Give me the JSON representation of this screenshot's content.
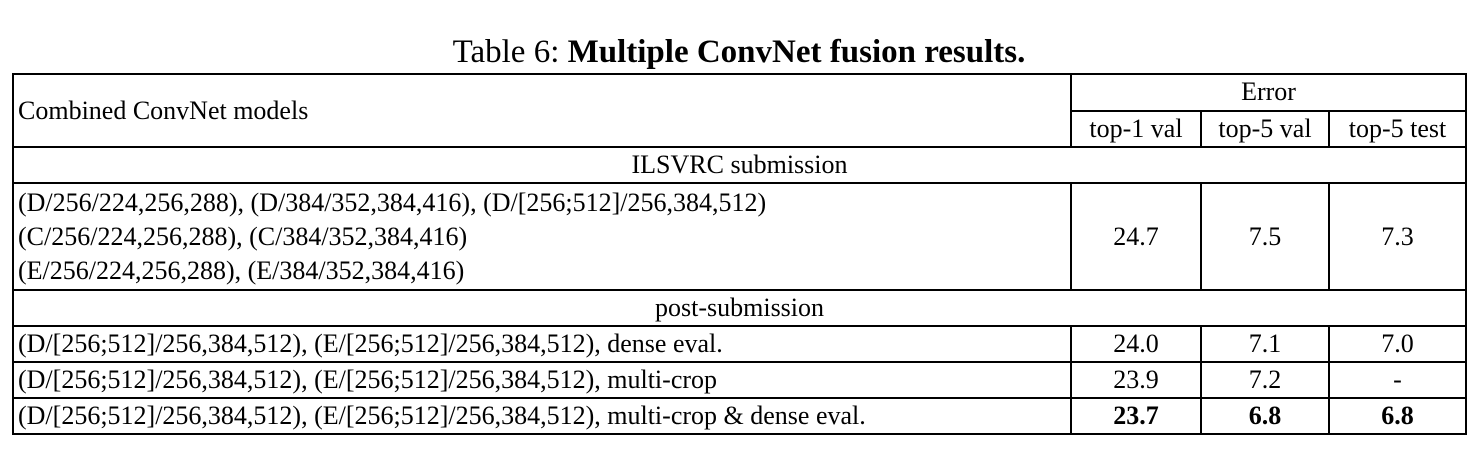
{
  "caption": {
    "label": "Table 6:",
    "title": "Multiple ConvNet fusion results."
  },
  "header": {
    "model_col": "Combined ConvNet models",
    "error_group": "Error",
    "sub_cols": [
      "top-1 val",
      "top-5 val",
      "top-5 test"
    ]
  },
  "sections": [
    {
      "title": "ILSVRC submission",
      "rows": [
        {
          "model_lines": [
            "(D/256/224,256,288), (D/384/352,384,416), (D/[256;512]/256,384,512)",
            "(C/256/224,256,288), (C/384/352,384,416)",
            "(E/256/224,256,288), (E/384/352,384,416)"
          ],
          "top1_val": "24.7",
          "top5_val": "7.5",
          "top5_test": "7.3",
          "bold": false
        }
      ]
    },
    {
      "title": "post-submission",
      "rows": [
        {
          "model_lines": [
            "(D/[256;512]/256,384,512), (E/[256;512]/256,384,512), dense eval."
          ],
          "top1_val": "24.0",
          "top5_val": "7.1",
          "top5_test": "7.0",
          "bold": false
        },
        {
          "model_lines": [
            "(D/[256;512]/256,384,512), (E/[256;512]/256,384,512), multi-crop"
          ],
          "top1_val": "23.9",
          "top5_val": "7.2",
          "top5_test": "-",
          "bold": false
        },
        {
          "model_lines": [
            "(D/[256;512]/256,384,512), (E/[256;512]/256,384,512), multi-crop & dense eval."
          ],
          "top1_val": "23.7",
          "top5_val": "6.8",
          "top5_test": "6.8",
          "bold": true
        }
      ]
    }
  ]
}
